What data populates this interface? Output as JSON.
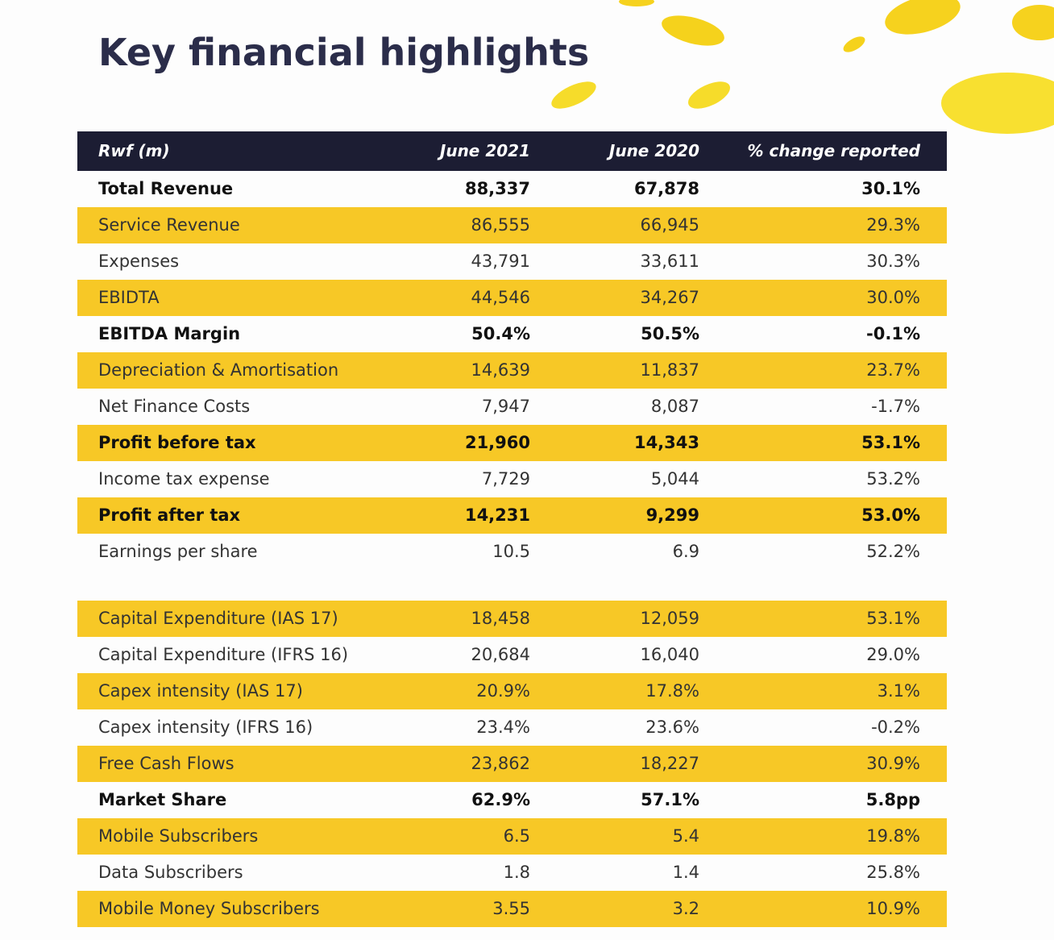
{
  "title": "Key financial highlights",
  "table": {
    "header": [
      "Rwf (m)",
      "June 2021",
      "June 2020",
      "% change reported"
    ],
    "groups": [
      [
        [
          "Total Revenue",
          "88,337",
          "67,878",
          "30.1%"
        ],
        [
          "Service Revenue",
          "86,555",
          "66,945",
          "29.3%"
        ],
        [
          "Expenses",
          "43,791",
          "33,611",
          "30.3%"
        ],
        [
          "EBIDTA",
          "44,546",
          "34,267",
          "30.0%"
        ],
        [
          "EBITDA Margin",
          "50.4%",
          "50.5%",
          "-0.1%"
        ],
        [
          "Depreciation & Amortisation",
          "14,639",
          "11,837",
          "23.7%"
        ],
        [
          "Net Finance Costs",
          "7,947",
          "8,087",
          "-1.7%"
        ],
        [
          "Profit before tax",
          "21,960",
          "14,343",
          "53.1%"
        ],
        [
          "Income tax expense",
          "7,729",
          "5,044",
          "53.2%"
        ],
        [
          "Profit after tax",
          "14,231",
          "9,299",
          "53.0%"
        ],
        [
          "Earnings per share",
          "10.5",
          "6.9",
          "52.2%"
        ]
      ],
      [
        [
          "Capital Expenditure (IAS 17)",
          "18,458",
          "12,059",
          "53.1%"
        ],
        [
          "Capital Expenditure (IFRS 16)",
          "20,684",
          "16,040",
          "29.0%"
        ],
        [
          "Capex intensity (IAS 17)",
          "20.9%",
          "17.8%",
          "3.1%"
        ],
        [
          "Capex intensity (IFRS 16)",
          "23.4%",
          "23.6%",
          "-0.2%"
        ],
        [
          "Free Cash Flows",
          "23,862",
          "18,227",
          "30.9%"
        ],
        [
          "Market Share",
          "62.9%",
          "57.1%",
          "5.8pp"
        ],
        [
          "Mobile Subscribers",
          "6.5",
          "5.4",
          "19.8%"
        ],
        [
          "Data Subscribers",
          "1.8",
          "1.4",
          "25.8%"
        ],
        [
          "Mobile Money Subscribers",
          "3.55",
          "3.2",
          "10.9%"
        ]
      ]
    ]
  }
}
